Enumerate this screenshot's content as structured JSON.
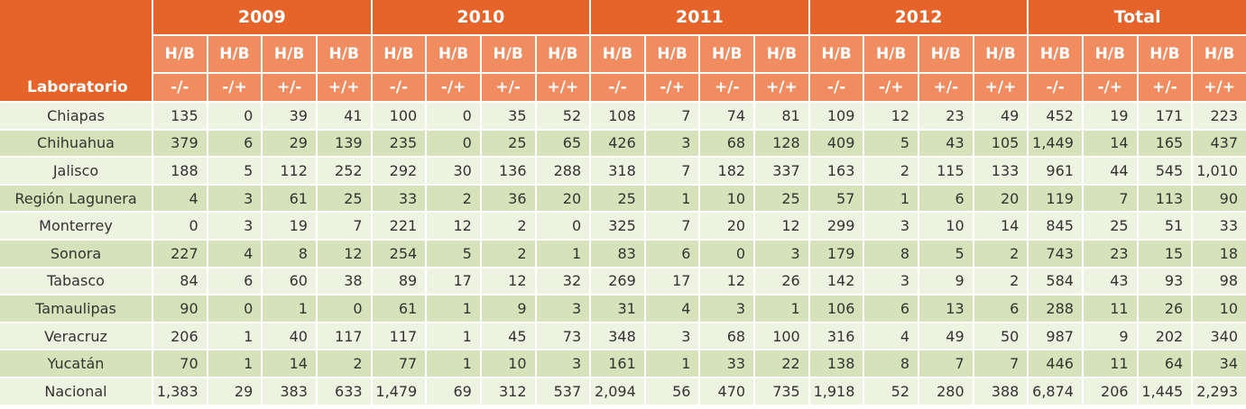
{
  "header": {
    "years": [
      "2009",
      "2010",
      "2011",
      "2012",
      "Total"
    ],
    "hb_label": "H/B",
    "lab_label": "Laboratorio",
    "signs": [
      "-/-",
      "-/+",
      "+/-",
      "+/+"
    ]
  },
  "rows": [
    {
      "label": "Chiapas",
      "values": [
        "135",
        "0",
        "39",
        "41",
        "100",
        "0",
        "35",
        "52",
        "108",
        "7",
        "74",
        "81",
        "109",
        "12",
        "23",
        "49",
        "452",
        "19",
        "171",
        "223"
      ]
    },
    {
      "label": "Chihuahua",
      "values": [
        "379",
        "6",
        "29",
        "139",
        "235",
        "0",
        "25",
        "65",
        "426",
        "3",
        "68",
        "128",
        "409",
        "5",
        "43",
        "105",
        "1,449",
        "14",
        "165",
        "437"
      ]
    },
    {
      "label": "Jalisco",
      "values": [
        "188",
        "5",
        "112",
        "252",
        "292",
        "30",
        "136",
        "288",
        "318",
        "7",
        "182",
        "337",
        "163",
        "2",
        "115",
        "133",
        "961",
        "44",
        "545",
        "1,010"
      ]
    },
    {
      "label": "Región Lagunera",
      "values": [
        "4",
        "3",
        "61",
        "25",
        "33",
        "2",
        "36",
        "20",
        "25",
        "1",
        "10",
        "25",
        "57",
        "1",
        "6",
        "20",
        "119",
        "7",
        "113",
        "90"
      ]
    },
    {
      "label": "Monterrey",
      "values": [
        "0",
        "3",
        "19",
        "7",
        "221",
        "12",
        "2",
        "0",
        "325",
        "7",
        "20",
        "12",
        "299",
        "3",
        "10",
        "14",
        "845",
        "25",
        "51",
        "33"
      ]
    },
    {
      "label": "Sonora",
      "values": [
        "227",
        "4",
        "8",
        "12",
        "254",
        "5",
        "2",
        "1",
        "83",
        "6",
        "0",
        "3",
        "179",
        "8",
        "5",
        "2",
        "743",
        "23",
        "15",
        "18"
      ]
    },
    {
      "label": "Tabasco",
      "values": [
        "84",
        "6",
        "60",
        "38",
        "89",
        "17",
        "12",
        "32",
        "269",
        "17",
        "12",
        "26",
        "142",
        "3",
        "9",
        "2",
        "584",
        "43",
        "93",
        "98"
      ]
    },
    {
      "label": "Tamaulipas",
      "values": [
        "90",
        "0",
        "1",
        "0",
        "61",
        "1",
        "9",
        "3",
        "31",
        "4",
        "3",
        "1",
        "106",
        "6",
        "13",
        "6",
        "288",
        "11",
        "26",
        "10"
      ]
    },
    {
      "label": "Veracruz",
      "values": [
        "206",
        "1",
        "40",
        "117",
        "117",
        "1",
        "45",
        "73",
        "348",
        "3",
        "68",
        "100",
        "316",
        "4",
        "49",
        "50",
        "987",
        "9",
        "202",
        "340"
      ]
    },
    {
      "label": "Yucatán",
      "values": [
        "70",
        "1",
        "14",
        "2",
        "77",
        "1",
        "10",
        "3",
        "161",
        "1",
        "33",
        "22",
        "138",
        "8",
        "7",
        "7",
        "446",
        "11",
        "64",
        "34"
      ]
    },
    {
      "label": "Nacional",
      "values": [
        "1,383",
        "29",
        "383",
        "633",
        "1,479",
        "69",
        "312",
        "537",
        "2,094",
        "56",
        "470",
        "735",
        "1,918",
        "52",
        "280",
        "388",
        "6,874",
        "206",
        "1,445",
        "2,293"
      ]
    }
  ]
}
